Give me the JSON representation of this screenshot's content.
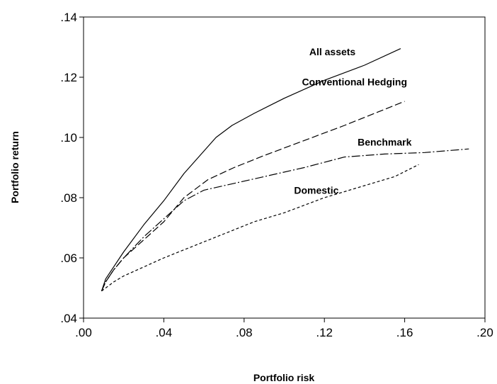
{
  "chart_data": {
    "type": "line",
    "title": "",
    "xlabel": "Portfolio risk",
    "ylabel": "Portfolio return",
    "xlim": [
      0.0,
      0.2
    ],
    "ylim": [
      0.04,
      0.14
    ],
    "xticks": [
      0.0,
      0.04,
      0.08,
      0.12,
      0.16,
      0.2
    ],
    "xtick_labels": [
      ".00",
      ".04",
      ".08",
      ".12",
      ".16",
      ".20"
    ],
    "yticks": [
      0.04,
      0.06,
      0.08,
      0.1,
      0.12,
      0.14
    ],
    "ytick_labels": [
      ".04",
      ".06",
      ".08",
      ".10",
      ".12",
      ".14"
    ],
    "grid": false,
    "legend": "inline labels",
    "series": [
      {
        "name": "All assets",
        "style": "solid",
        "label_at": [
          0.124,
          0.1285
        ],
        "points": [
          [
            0.009,
            0.049
          ],
          [
            0.011,
            0.053
          ],
          [
            0.015,
            0.057
          ],
          [
            0.02,
            0.062
          ],
          [
            0.03,
            0.071
          ],
          [
            0.04,
            0.079
          ],
          [
            0.05,
            0.088
          ],
          [
            0.066,
            0.1
          ],
          [
            0.074,
            0.104
          ],
          [
            0.085,
            0.108
          ],
          [
            0.1,
            0.113
          ],
          [
            0.12,
            0.119
          ],
          [
            0.14,
            0.124
          ],
          [
            0.158,
            0.1295
          ]
        ]
      },
      {
        "name": "Conventional Hedging",
        "style": "dash",
        "label_at": [
          0.135,
          0.1185
        ],
        "points": [
          [
            0.009,
            0.049
          ],
          [
            0.011,
            0.052
          ],
          [
            0.015,
            0.056
          ],
          [
            0.02,
            0.06
          ],
          [
            0.03,
            0.066
          ],
          [
            0.04,
            0.072
          ],
          [
            0.05,
            0.08
          ],
          [
            0.062,
            0.086
          ],
          [
            0.075,
            0.09
          ],
          [
            0.09,
            0.094
          ],
          [
            0.11,
            0.099
          ],
          [
            0.13,
            0.104
          ],
          [
            0.145,
            0.108
          ],
          [
            0.16,
            0.112
          ]
        ]
      },
      {
        "name": "Benchmark",
        "style": "dashdot",
        "label_at": [
          0.15,
          0.0985
        ],
        "points": [
          [
            0.009,
            0.049
          ],
          [
            0.011,
            0.052
          ],
          [
            0.015,
            0.056
          ],
          [
            0.02,
            0.06
          ],
          [
            0.03,
            0.067
          ],
          [
            0.04,
            0.073
          ],
          [
            0.05,
            0.079
          ],
          [
            0.06,
            0.0825
          ],
          [
            0.07,
            0.084
          ],
          [
            0.09,
            0.087
          ],
          [
            0.11,
            0.09
          ],
          [
            0.13,
            0.0935
          ],
          [
            0.15,
            0.0945
          ],
          [
            0.17,
            0.095
          ],
          [
            0.192,
            0.0962
          ]
        ]
      },
      {
        "name": "Domestic",
        "style": "shortdash",
        "label_at": [
          0.116,
          0.0825
        ],
        "points": [
          [
            0.009,
            0.049
          ],
          [
            0.011,
            0.05
          ],
          [
            0.015,
            0.052
          ],
          [
            0.02,
            0.054
          ],
          [
            0.03,
            0.057
          ],
          [
            0.04,
            0.06
          ],
          [
            0.055,
            0.064
          ],
          [
            0.07,
            0.068
          ],
          [
            0.085,
            0.072
          ],
          [
            0.1,
            0.075
          ],
          [
            0.12,
            0.08
          ],
          [
            0.14,
            0.084
          ],
          [
            0.155,
            0.087
          ],
          [
            0.167,
            0.091
          ]
        ]
      }
    ]
  },
  "colors": {
    "line": "#000000",
    "background": "#ffffff"
  }
}
